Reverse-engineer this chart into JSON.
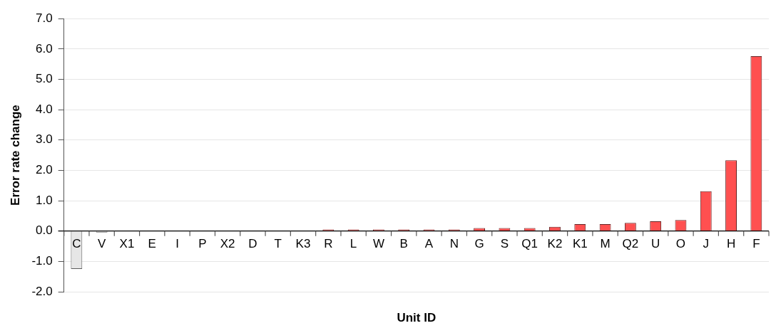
{
  "chart_data": {
    "type": "bar",
    "xlabel": "Unit ID",
    "ylabel": "Error rate change",
    "categories": [
      "C",
      "V",
      "X1",
      "E",
      "I",
      "P",
      "X2",
      "D",
      "T",
      "K3",
      "R",
      "L",
      "W",
      "B",
      "A",
      "N",
      "G",
      "S",
      "Q1",
      "K2",
      "K1",
      "M",
      "Q2",
      "U",
      "O",
      "J",
      "H",
      "F"
    ],
    "values": [
      -1.25,
      -0.05,
      0,
      0,
      0,
      0,
      0,
      0,
      0,
      0,
      0.05,
      0.05,
      0.05,
      0.05,
      0.05,
      0.05,
      0.1,
      0.1,
      0.1,
      0.14,
      0.23,
      0.23,
      0.27,
      0.32,
      0.36,
      1.31,
      2.33,
      5.76
    ],
    "colors": [
      "#e6e6e6",
      "#e6e6e6",
      "#ff5050",
      "#ff5050",
      "#ff5050",
      "#ff5050",
      "#ff5050",
      "#ff5050",
      "#ff5050",
      "#ff5050",
      "#ff5050",
      "#ff5050",
      "#ff5050",
      "#ff5050",
      "#ff5050",
      "#ff5050",
      "#ff5050",
      "#ff5050",
      "#ff5050",
      "#ff5050",
      "#ff5050",
      "#ff5050",
      "#ff5050",
      "#ff5050",
      "#ff5050",
      "#ff5050",
      "#ff5050",
      "#ff5050"
    ],
    "ylim": [
      -2,
      7
    ],
    "yticks": [
      {
        "value": -2,
        "label": "-2.0"
      },
      {
        "value": -1,
        "label": "-1.0"
      },
      {
        "value": 0,
        "label": "0.0"
      },
      {
        "value": 1,
        "label": "1.0"
      },
      {
        "value": 2,
        "label": "2.0"
      },
      {
        "value": 3,
        "label": "3.0"
      },
      {
        "value": 4,
        "label": "4.0"
      },
      {
        "value": 5,
        "label": "5.0"
      },
      {
        "value": 6,
        "label": "6.0"
      },
      {
        "value": 7,
        "label": "7.0"
      }
    ],
    "grid": "y"
  }
}
